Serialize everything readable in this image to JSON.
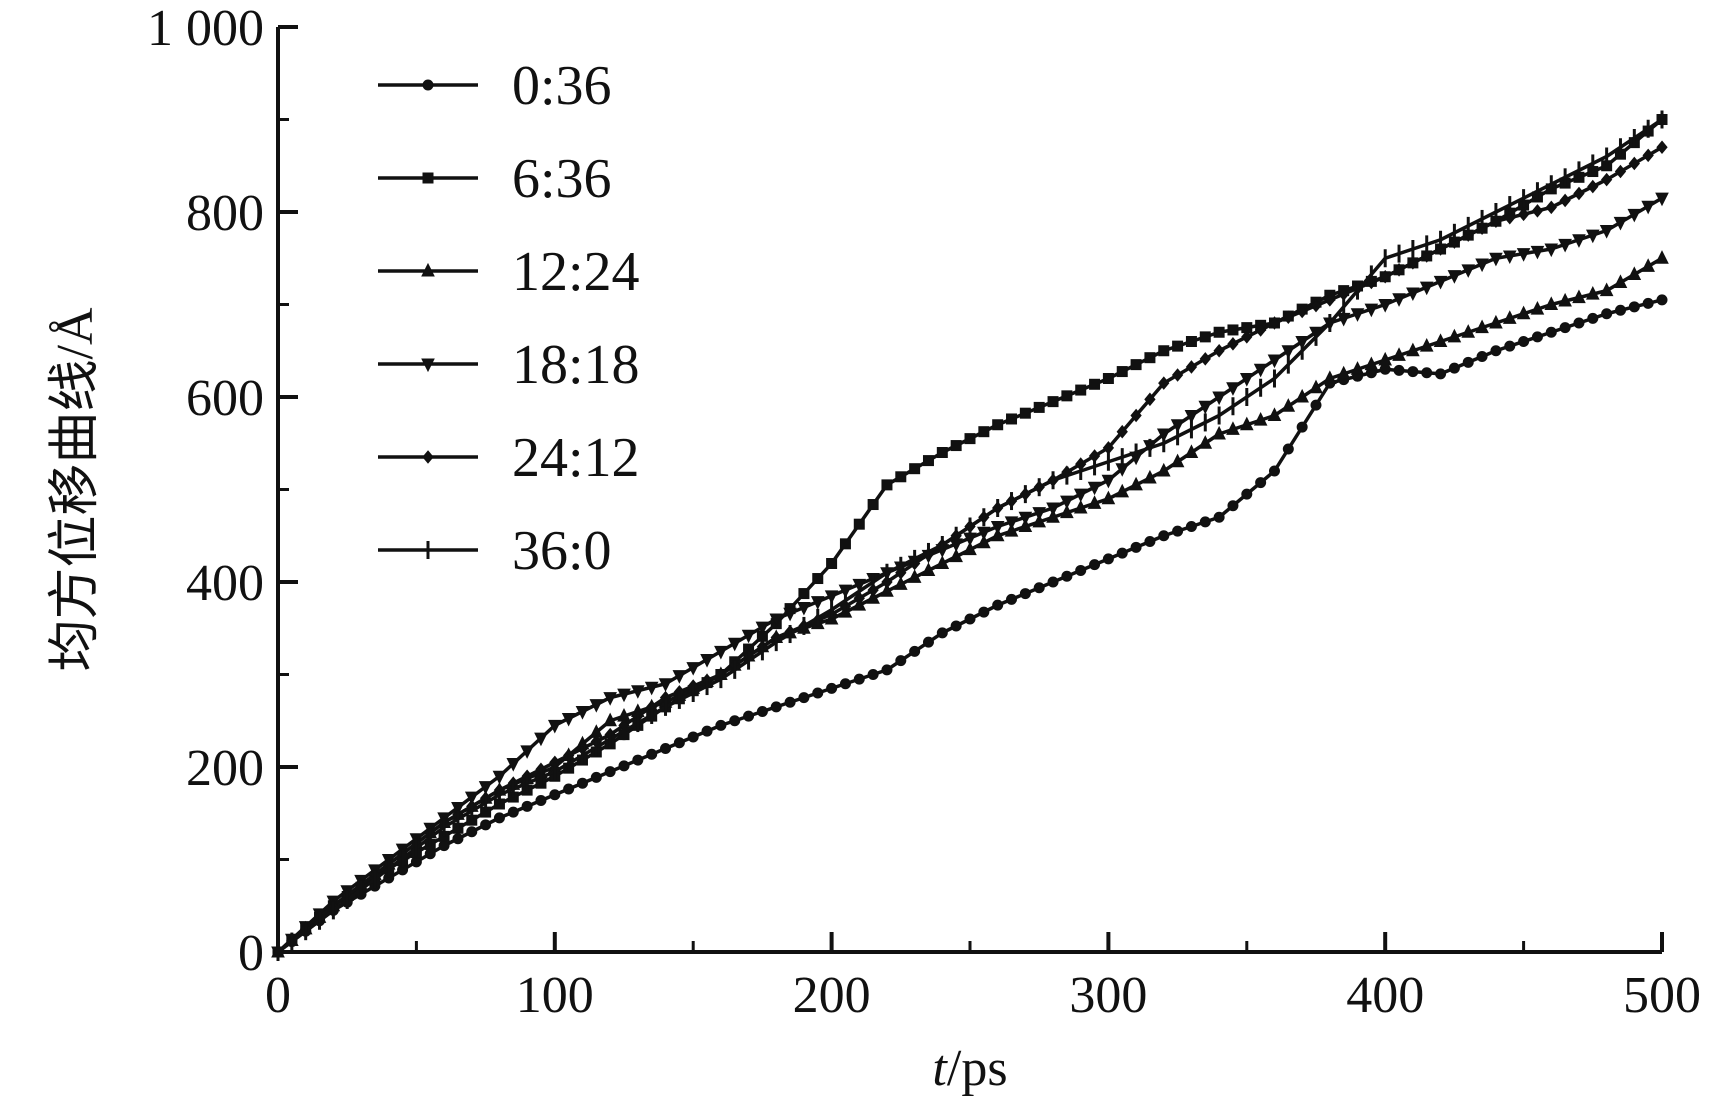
{
  "chart_data": {
    "type": "line",
    "xlabel": "t/ps",
    "ylabel": "均方位移曲线/Å",
    "xlim": [
      0,
      500
    ],
    "ylim": [
      0,
      1000
    ],
    "xticks": [
      "0",
      "100",
      "200",
      "300",
      "400",
      "500"
    ],
    "yticks": [
      "0",
      "200",
      "400",
      "600",
      "800",
      "1 000"
    ],
    "grid": false,
    "legend_position": "top-left",
    "x": [
      0,
      20,
      40,
      60,
      80,
      100,
      120,
      140,
      160,
      180,
      200,
      220,
      240,
      260,
      280,
      300,
      320,
      340,
      360,
      380,
      400,
      420,
      440,
      460,
      480,
      500
    ],
    "series": [
      {
        "name": "0:36",
        "marker": "circle",
        "values": [
          0,
          45,
          80,
          115,
          145,
          170,
          195,
          220,
          245,
          265,
          285,
          305,
          345,
          375,
          400,
          425,
          450,
          470,
          520,
          615,
          630,
          625,
          650,
          670,
          690,
          705
        ]
      },
      {
        "name": "6:36",
        "marker": "square",
        "values": [
          0,
          50,
          90,
          125,
          160,
          190,
          225,
          265,
          300,
          355,
          420,
          505,
          540,
          570,
          595,
          620,
          650,
          670,
          680,
          710,
          730,
          760,
          790,
          825,
          850,
          900
        ]
      },
      {
        "name": "12:24",
        "marker": "triangle-up",
        "values": [
          0,
          50,
          95,
          140,
          175,
          200,
          250,
          270,
          300,
          340,
          360,
          390,
          420,
          450,
          470,
          490,
          520,
          560,
          580,
          620,
          640,
          660,
          680,
          700,
          715,
          750
        ]
      },
      {
        "name": "18:18",
        "marker": "triangle-down",
        "values": [
          0,
          55,
          100,
          145,
          190,
          245,
          275,
          290,
          325,
          360,
          385,
          410,
          435,
          460,
          480,
          510,
          560,
          600,
          640,
          680,
          700,
          725,
          750,
          760,
          780,
          815
        ]
      },
      {
        "name": "24:12",
        "marker": "diamond",
        "values": [
          0,
          50,
          95,
          140,
          175,
          205,
          235,
          275,
          300,
          340,
          365,
          400,
          440,
          480,
          510,
          545,
          615,
          650,
          680,
          705,
          730,
          760,
          790,
          805,
          835,
          870
        ]
      },
      {
        "name": "36:0",
        "marker": "plus",
        "values": [
          0,
          45,
          90,
          135,
          170,
          195,
          230,
          265,
          295,
          335,
          370,
          410,
          440,
          480,
          510,
          530,
          550,
          580,
          620,
          680,
          750,
          770,
          800,
          830,
          860,
          900
        ]
      }
    ]
  }
}
